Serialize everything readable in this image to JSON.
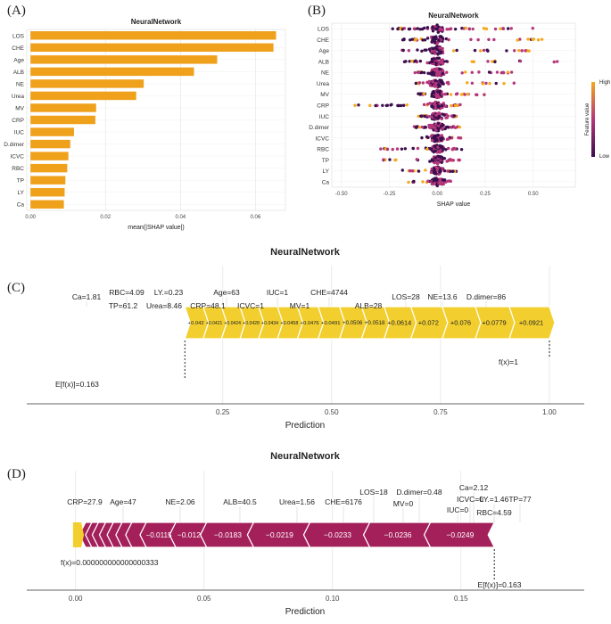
{
  "chart_data": [
    {
      "panel": "(A)",
      "type": "bar",
      "orientation": "horizontal",
      "title": "NeuralNetwork",
      "xlabel": "mean(|SHAP value|)",
      "ylabel": "",
      "categories": [
        "LOS",
        "CHE",
        "Age",
        "ALB",
        "NE",
        "Urea",
        "MV",
        "CRP",
        "IUC",
        "D.dimer",
        "ICVC",
        "RBC",
        "TP",
        "LY",
        "Ca"
      ],
      "values": [
        0.0655,
        0.0648,
        0.0498,
        0.0436,
        0.0302,
        0.0282,
        0.0175,
        0.0173,
        0.0116,
        0.0106,
        0.0101,
        0.0098,
        0.0093,
        0.0091,
        0.0089
      ],
      "xlim": [
        -0.001,
        0.068
      ],
      "xticks": [
        "0.00",
        "0.02",
        "0.04",
        "0.06"
      ],
      "xtick_values": [
        0,
        0.02,
        0.04,
        0.06
      ],
      "bar_color": "#f0a11c",
      "grid": true
    },
    {
      "panel": "(B)",
      "type": "scatter",
      "subtype": "beeswarm",
      "title": "NeuralNetwork",
      "xlabel": "SHAP value",
      "features": [
        "LOS",
        "CHE",
        "Age",
        "ALB",
        "NE",
        "Urea",
        "MV",
        "CRP",
        "IUC",
        "D.dimer",
        "ICVC",
        "RBC",
        "TP",
        "LY",
        "Ca"
      ],
      "spread_left": [
        0.25,
        0.18,
        0.2,
        0.18,
        0.12,
        0.12,
        0.1,
        0.45,
        0.1,
        0.12,
        0.1,
        0.32,
        0.3,
        0.2,
        0.15
      ],
      "spread_right": [
        0.55,
        0.6,
        0.5,
        0.65,
        0.45,
        0.42,
        0.25,
        0.12,
        0.1,
        0.12,
        0.13,
        0.13,
        0.12,
        0.1,
        0.08
      ],
      "xlim": [
        -0.55,
        0.72
      ],
      "xticks": [
        "-0.50",
        "-0.25",
        "0.00",
        "0.25",
        "0.50"
      ],
      "xtick_values": [
        -0.5,
        -0.25,
        0,
        0.25,
        0.5
      ],
      "colorbar": {
        "title": "Feature value",
        "high": "High",
        "low": "Low"
      },
      "colors": {
        "low": "#3b0f4f",
        "mid": "#b5367a",
        "high": "#f5a81d"
      }
    },
    {
      "panel": "(C)",
      "type": "force",
      "title": "NeuralNetwork",
      "xlabel": "Prediction",
      "xlim": [
        -0.2,
        1.08
      ],
      "xticks": [
        "0.25",
        "0.50",
        "0.75",
        "1.00"
      ],
      "xtick_values": [
        0.25,
        0.5,
        0.75,
        1.0
      ],
      "base_value": 0.163,
      "base_label": "E[f(x)]=0.163",
      "output_value": 1.0,
      "output_label": "f(x)=1",
      "direction": "positive",
      "segments": [
        {
          "feature": "Ca=1.81",
          "value": "+0.042",
          "width": 0.042
        },
        {
          "feature": "RBC=4.09",
          "value": "+0.0421",
          "width": 0.0421
        },
        {
          "feature": "TP=61.2",
          "value": "+0.0424",
          "width": 0.0424
        },
        {
          "feature": "LY.=0.23",
          "value": "+0.0428",
          "width": 0.0428
        },
        {
          "feature": "Urea=8.46",
          "value": "+0.0434",
          "width": 0.0434
        },
        {
          "feature": "CRP=48.1",
          "value": "+0.0458",
          "width": 0.0458
        },
        {
          "feature": "Age=63",
          "value": "+0.0476",
          "width": 0.0476
        },
        {
          "feature": "ICVC=1",
          "value": "+0.0491",
          "width": 0.0491
        },
        {
          "feature": "IUC=1",
          "value": "+0.0506",
          "width": 0.0506
        },
        {
          "feature": "MV=1",
          "value": "+0.0518",
          "width": 0.0518
        },
        {
          "feature": "CHE=4744",
          "value": "+0.0614",
          "width": 0.0614
        },
        {
          "feature": "ALB=28",
          "value": "+0.072",
          "width": 0.072
        },
        {
          "feature": "LOS=28",
          "value": "+0.076",
          "width": 0.076
        },
        {
          "feature": "NE=13.6",
          "value": "+0.0779",
          "width": 0.0779
        },
        {
          "feature": "D.dimer=86",
          "value": "+0.0921",
          "width": 0.0921
        }
      ],
      "color": "#f2cf2e"
    },
    {
      "panel": "(D)",
      "type": "force",
      "title": "NeuralNetwork",
      "xlabel": "Prediction",
      "xlim": [
        -0.019,
        0.198
      ],
      "xticks": [
        "0.00",
        "0.05",
        "0.10",
        "0.15"
      ],
      "xtick_values": [
        0,
        0.05,
        0.1,
        0.15
      ],
      "base_value": 0.163,
      "base_label": "E[f(x)]=0.163",
      "output_value": 0.0,
      "output_label": "f(x)=0.000000000000000333",
      "direction": "negative",
      "positive_segment": {
        "feature": "CRP=27.9",
        "width": 0.0022
      },
      "segments": [
        {
          "feature": "Age=47",
          "value": "−0.0249",
          "width": 0.0249
        },
        {
          "feature": "NE=2.06",
          "value": "−0.0236",
          "width": 0.0236
        },
        {
          "feature": "ALB=40.5",
          "value": "−0.0233",
          "width": 0.0233
        },
        {
          "feature": "Urea=1.56",
          "value": "−0.0219",
          "width": 0.0219
        },
        {
          "feature": "CHE=6176",
          "value": "−0.0183",
          "width": 0.0183
        },
        {
          "feature": "LOS=18",
          "value": "−0.012",
          "width": 0.012
        },
        {
          "feature": "MV=0",
          "value": "−0.0115",
          "width": 0.0115
        },
        {
          "feature": "D.dimer=0.48",
          "value": "",
          "width": 0.0056
        },
        {
          "feature": "IUC=0",
          "value": "",
          "width": 0.0038
        },
        {
          "feature": "Ca=2.12",
          "value": "",
          "width": 0.0034
        },
        {
          "feature": "ICVC=0",
          "value": "",
          "width": 0.003
        },
        {
          "feature": "LY.=1.46",
          "value": "",
          "width": 0.0028
        },
        {
          "feature": "RBC=4.59",
          "value": "",
          "width": 0.0026
        },
        {
          "feature": "TP=77",
          "value": "",
          "width": 0.0024
        }
      ],
      "color": "#a3205a",
      "positive_color": "#f2cf2e"
    }
  ]
}
